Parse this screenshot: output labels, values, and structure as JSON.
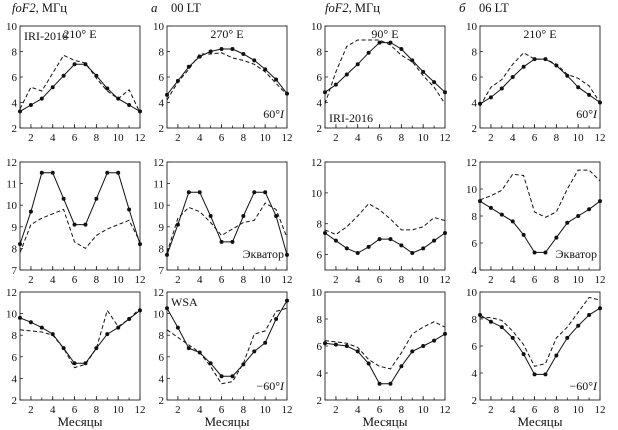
{
  "header": {
    "col0": [
      {
        "t": "foF2",
        "i": true
      },
      {
        "t": ", МГц",
        "i": false
      }
    ],
    "col1": "а",
    "col1_lt": "00 LT",
    "col2": [
      {
        "t": "foF2",
        "i": true
      },
      {
        "t": ", МГц",
        "i": false
      }
    ],
    "col3": "б",
    "col3_lt": "06 LT"
  },
  "xlabel": "Месяцы",
  "chart_data": [
    {
      "type": "line",
      "row": 0,
      "col": 0,
      "ylim": [
        2,
        10
      ],
      "yticks": [
        2,
        4,
        6,
        8,
        10
      ],
      "xlim": [
        1,
        12
      ],
      "xticks": [
        2,
        4,
        6,
        8,
        10,
        12
      ],
      "labels": {
        "tl": "IRI-2016",
        "tc": "210° E",
        "br": "",
        "br_i": ""
      },
      "series": [
        {
          "style": "solid",
          "x": [
            1,
            2,
            3,
            4,
            5,
            6,
            7,
            8,
            9,
            10,
            11,
            12
          ],
          "values": [
            3.3,
            3.8,
            4.3,
            5.2,
            6.1,
            7.0,
            7.0,
            6.1,
            5.1,
            4.3,
            3.8,
            3.3
          ]
        },
        {
          "style": "dashed",
          "x": [
            1,
            2,
            3,
            4,
            5,
            6,
            7,
            8,
            9,
            10,
            11,
            12
          ],
          "values": [
            3.5,
            5.2,
            4.9,
            6.3,
            7.7,
            7.3,
            7.1,
            5.9,
            4.9,
            4.3,
            5.0,
            3.2
          ]
        }
      ]
    },
    {
      "type": "line",
      "row": 0,
      "col": 1,
      "ylim": [
        2,
        10
      ],
      "yticks": [
        2,
        4,
        6,
        8,
        10
      ],
      "xlim": [
        1,
        12
      ],
      "xticks": [
        2,
        4,
        6,
        8,
        10,
        12
      ],
      "labels": {
        "tl": "",
        "tc": "270° E",
        "br": "60°",
        "br_i": "I"
      },
      "series": [
        {
          "style": "solid",
          "x": [
            1,
            2,
            3,
            4,
            5,
            6,
            7,
            8,
            9,
            10,
            11,
            12
          ],
          "values": [
            4.6,
            5.7,
            6.8,
            7.6,
            8.0,
            8.2,
            8.2,
            7.8,
            7.3,
            6.6,
            5.8,
            4.7
          ]
        },
        {
          "style": "dashed",
          "x": [
            1,
            2,
            3,
            4,
            5,
            6,
            7,
            8,
            9,
            10,
            11,
            12
          ],
          "values": [
            4.2,
            5.6,
            6.6,
            7.8,
            7.8,
            7.9,
            7.5,
            7.3,
            7.0,
            6.4,
            5.5,
            4.6
          ]
        }
      ]
    },
    {
      "type": "line",
      "row": 0,
      "col": 2,
      "ylim": [
        2,
        10
      ],
      "yticks": [
        2,
        4,
        6,
        8,
        10
      ],
      "xlim": [
        1,
        12
      ],
      "xticks": [
        2,
        4,
        6,
        8,
        10,
        12
      ],
      "labels": {
        "tl": "",
        "tc": "90° E",
        "br": "",
        "br_i": "",
        "bl": "IRI-2016"
      },
      "series": [
        {
          "style": "solid",
          "x": [
            1,
            2,
            3,
            4,
            5,
            6,
            7,
            8,
            9,
            10,
            11,
            12
          ],
          "values": [
            4.8,
            5.4,
            6.2,
            7.0,
            7.9,
            8.7,
            8.7,
            8.2,
            7.3,
            6.4,
            5.6,
            4.8
          ]
        },
        {
          "style": "dashed",
          "x": [
            1,
            2,
            3,
            4,
            5,
            6,
            7,
            8,
            9,
            10,
            11,
            12
          ],
          "values": [
            3.9,
            6.4,
            8.4,
            8.9,
            8.9,
            8.9,
            8.5,
            7.7,
            7.2,
            6.1,
            5.2,
            3.9
          ]
        }
      ]
    },
    {
      "type": "line",
      "row": 0,
      "col": 3,
      "ylim": [
        2,
        10
      ],
      "yticks": [
        2,
        4,
        6,
        8,
        10
      ],
      "xlim": [
        1,
        12
      ],
      "xticks": [
        2,
        4,
        6,
        8,
        10,
        12
      ],
      "labels": {
        "tl": "",
        "tc": "210° E",
        "br": "60°",
        "br_i": "I"
      },
      "series": [
        {
          "style": "solid",
          "x": [
            1,
            2,
            3,
            4,
            5,
            6,
            7,
            8,
            9,
            10,
            11,
            12
          ],
          "values": [
            3.9,
            4.4,
            5.1,
            6.0,
            6.8,
            7.4,
            7.4,
            6.9,
            6.1,
            5.2,
            4.6,
            4.0
          ]
        },
        {
          "style": "dashed",
          "x": [
            1,
            2,
            3,
            4,
            5,
            6,
            7,
            8,
            9,
            10,
            11,
            12
          ],
          "values": [
            3.7,
            5.2,
            5.8,
            7.0,
            7.9,
            7.4,
            7.4,
            7.0,
            6.2,
            5.9,
            5.3,
            4.0
          ]
        }
      ]
    },
    {
      "type": "line",
      "row": 1,
      "col": 0,
      "ylim": [
        7,
        12
      ],
      "yticks": [
        7,
        8,
        9,
        10,
        11,
        12
      ],
      "xlim": [
        1,
        12
      ],
      "xticks": [
        2,
        4,
        6,
        8,
        10,
        12
      ],
      "labels": {
        "tl": "",
        "tc": "",
        "br": "",
        "br_i": ""
      },
      "series": [
        {
          "style": "solid",
          "x": [
            1,
            2,
            3,
            4,
            5,
            6,
            7,
            8,
            9,
            10,
            11,
            12
          ],
          "values": [
            8.2,
            9.7,
            11.5,
            11.5,
            10.3,
            9.1,
            9.1,
            10.3,
            11.5,
            11.5,
            9.8,
            8.2
          ]
        },
        {
          "style": "dashed",
          "x": [
            1,
            2,
            3,
            4,
            5,
            6,
            7,
            8,
            9,
            10,
            11,
            12
          ],
          "values": [
            7.8,
            9.1,
            9.4,
            9.6,
            9.8,
            8.3,
            8.0,
            8.6,
            8.9,
            9.1,
            9.3,
            8.3
          ]
        }
      ]
    },
    {
      "type": "line",
      "row": 1,
      "col": 1,
      "ylim": [
        7,
        12
      ],
      "yticks": [
        7,
        8,
        9,
        10,
        11,
        12
      ],
      "xlim": [
        1,
        12
      ],
      "xticks": [
        2,
        4,
        6,
        8,
        10,
        12
      ],
      "labels": {
        "tl": "",
        "tc": "",
        "br": "Экватор",
        "br_i": ""
      },
      "series": [
        {
          "style": "solid",
          "x": [
            1,
            2,
            3,
            4,
            5,
            6,
            7,
            8,
            9,
            10,
            11,
            12
          ],
          "values": [
            7.7,
            9.1,
            10.6,
            10.6,
            9.5,
            8.3,
            8.3,
            9.5,
            10.6,
            10.6,
            9.5,
            7.7
          ]
        },
        {
          "style": "dashed",
          "x": [
            1,
            2,
            3,
            4,
            5,
            6,
            7,
            8,
            9,
            10,
            11,
            12
          ],
          "values": [
            7.8,
            9.4,
            9.9,
            9.7,
            9.2,
            8.6,
            8.9,
            9.2,
            9.3,
            10.1,
            9.8,
            8.5
          ]
        }
      ]
    },
    {
      "type": "line",
      "row": 1,
      "col": 2,
      "ylim": [
        5,
        12
      ],
      "yticks": [
        6,
        8,
        10,
        12
      ],
      "xlim": [
        1,
        12
      ],
      "xticks": [
        2,
        4,
        6,
        8,
        10,
        12
      ],
      "labels": {
        "tl": "",
        "tc": "",
        "br": "",
        "br_i": ""
      },
      "series": [
        {
          "style": "solid",
          "x": [
            1,
            2,
            3,
            4,
            5,
            6,
            7,
            8,
            9,
            10,
            11,
            12
          ],
          "values": [
            7.4,
            6.9,
            6.4,
            6.1,
            6.5,
            7.0,
            7.0,
            6.6,
            6.1,
            6.4,
            6.9,
            7.4
          ]
        },
        {
          "style": "dashed",
          "x": [
            1,
            2,
            3,
            4,
            5,
            6,
            7,
            8,
            9,
            10,
            11,
            12
          ],
          "values": [
            7.6,
            7.3,
            7.8,
            8.5,
            9.3,
            8.9,
            8.3,
            7.6,
            7.6,
            7.8,
            8.4,
            8.2
          ]
        }
      ]
    },
    {
      "type": "line",
      "row": 1,
      "col": 3,
      "ylim": [
        4,
        12
      ],
      "yticks": [
        4,
        6,
        8,
        10,
        12
      ],
      "xlim": [
        1,
        12
      ],
      "xticks": [
        2,
        4,
        6,
        8,
        10,
        12
      ],
      "labels": {
        "tl": "",
        "tc": "",
        "br": "Экватор",
        "br_i": ""
      },
      "series": [
        {
          "style": "solid",
          "x": [
            1,
            2,
            3,
            4,
            5,
            6,
            7,
            8,
            9,
            10,
            11,
            12
          ],
          "values": [
            9.1,
            8.6,
            8.1,
            7.6,
            6.6,
            5.3,
            5.3,
            6.4,
            7.5,
            8.0,
            8.5,
            9.1
          ]
        },
        {
          "style": "dashed",
          "x": [
            1,
            2,
            3,
            4,
            5,
            6,
            7,
            8,
            9,
            10,
            11,
            12
          ],
          "values": [
            9.2,
            9.5,
            9.9,
            11.1,
            11.0,
            8.3,
            7.9,
            8.3,
            10.0,
            11.4,
            11.4,
            10.6
          ]
        }
      ]
    },
    {
      "type": "line",
      "row": 2,
      "col": 0,
      "ylim": [
        2,
        12
      ],
      "yticks": [
        2,
        4,
        6,
        8,
        10,
        12
      ],
      "xlim": [
        1,
        12
      ],
      "xticks": [
        2,
        4,
        6,
        8,
        10,
        12
      ],
      "labels": {
        "tl": "",
        "tc": "",
        "br": "",
        "br_i": ""
      },
      "series": [
        {
          "style": "solid",
          "x": [
            1,
            2,
            3,
            4,
            5,
            6,
            7,
            8,
            9,
            10,
            11,
            12
          ],
          "values": [
            9.6,
            9.2,
            8.7,
            8.1,
            6.8,
            5.4,
            5.4,
            6.8,
            8.1,
            8.7,
            9.5,
            10.3
          ]
        },
        {
          "style": "dashed",
          "x": [
            1,
            2,
            3,
            4,
            5,
            6,
            7,
            8,
            9,
            10,
            11,
            12
          ],
          "values": [
            8.5,
            8.4,
            8.3,
            8.0,
            6.8,
            5.0,
            5.3,
            6.8,
            10.3,
            8.8,
            9.5,
            10.5
          ]
        }
      ]
    },
    {
      "type": "line",
      "row": 2,
      "col": 1,
      "ylim": [
        2,
        12
      ],
      "yticks": [
        2,
        4,
        6,
        8,
        10,
        12
      ],
      "xlim": [
        1,
        12
      ],
      "xticks": [
        2,
        4,
        6,
        8,
        10,
        12
      ],
      "labels": {
        "tl": "WSA",
        "tc": "",
        "br": "−60°",
        "br_i": "I"
      },
      "series": [
        {
          "style": "solid",
          "x": [
            1,
            2,
            3,
            4,
            5,
            6,
            7,
            8,
            9,
            10,
            11,
            12
          ],
          "values": [
            10.5,
            8.7,
            6.8,
            6.4,
            5.4,
            4.2,
            4.2,
            5.3,
            6.5,
            7.3,
            9.5,
            11.2
          ]
        },
        {
          "style": "dashed",
          "x": [
            1,
            2,
            3,
            4,
            5,
            6,
            7,
            8,
            9,
            10,
            11,
            12
          ],
          "values": [
            8.5,
            7.8,
            7.1,
            6.4,
            5.1,
            3.5,
            3.7,
            5.4,
            8.1,
            8.4,
            10.2,
            10.5
          ]
        }
      ]
    },
    {
      "type": "line",
      "row": 2,
      "col": 2,
      "ylim": [
        2,
        10
      ],
      "yticks": [
        2,
        4,
        6,
        8,
        10
      ],
      "xlim": [
        1,
        12
      ],
      "xticks": [
        2,
        4,
        6,
        8,
        10,
        12
      ],
      "labels": {
        "tl": "",
        "tc": "",
        "br": "",
        "br_i": ""
      },
      "series": [
        {
          "style": "solid",
          "x": [
            1,
            2,
            3,
            4,
            5,
            6,
            7,
            8,
            9,
            10,
            11,
            12
          ],
          "values": [
            6.2,
            6.1,
            6.0,
            5.6,
            4.7,
            3.2,
            3.2,
            4.5,
            5.6,
            6.0,
            6.4,
            6.9
          ]
        },
        {
          "style": "dashed",
          "x": [
            1,
            2,
            3,
            4,
            5,
            6,
            7,
            8,
            9,
            10,
            11,
            12
          ],
          "values": [
            6.4,
            6.3,
            6.2,
            5.9,
            5.0,
            4.5,
            4.3,
            5.5,
            6.9,
            7.4,
            7.8,
            7.4
          ]
        }
      ]
    },
    {
      "type": "line",
      "row": 2,
      "col": 3,
      "ylim": [
        2,
        10
      ],
      "yticks": [
        2,
        4,
        6,
        8,
        10
      ],
      "xlim": [
        1,
        12
      ],
      "xticks": [
        2,
        4,
        6,
        8,
        10,
        12
      ],
      "labels": {
        "tl": "",
        "tc": "",
        "br": "−60°",
        "br_i": "I"
      },
      "series": [
        {
          "style": "solid",
          "x": [
            1,
            2,
            3,
            4,
            5,
            6,
            7,
            8,
            9,
            10,
            11,
            12
          ],
          "values": [
            8.3,
            7.8,
            7.4,
            6.6,
            5.4,
            3.9,
            3.9,
            5.3,
            6.6,
            7.5,
            8.3,
            8.8
          ]
        },
        {
          "style": "dashed",
          "x": [
            1,
            2,
            3,
            4,
            5,
            6,
            7,
            8,
            9,
            10,
            11,
            12
          ],
          "values": [
            8.1,
            8.1,
            7.9,
            7.1,
            6.1,
            4.5,
            4.7,
            6.6,
            7.4,
            8.5,
            9.6,
            9.4
          ]
        }
      ]
    }
  ]
}
